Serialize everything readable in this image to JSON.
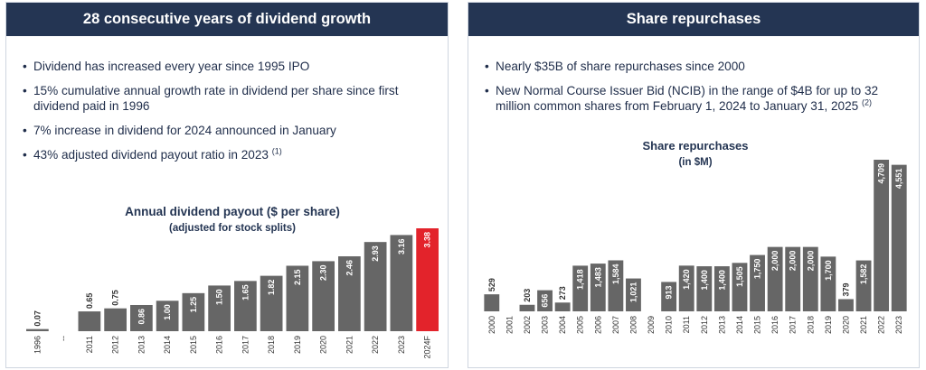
{
  "left_panel": {
    "title": "28 consecutive years of dividend growth",
    "bullets": [
      {
        "text": "Dividend has increased every year since 1995 IPO",
        "sup": ""
      },
      {
        "text": "15% cumulative annual growth rate in dividend per share since first dividend paid in 1996",
        "sup": ""
      },
      {
        "text": "7% increase in dividend for 2024 announced in January",
        "sup": ""
      },
      {
        "text": "43% adjusted dividend payout ratio in 2023",
        "sup": "(1)"
      }
    ]
  },
  "right_panel": {
    "title": "Share repurchases",
    "bullets": [
      {
        "text": "Nearly $35B of share repurchases since 2000",
        "sup": ""
      },
      {
        "text": "New Normal Course Issuer Bid (NCIB) in the range of $4B for up to 32 million common shares from February 1, 2024 to January 31, 2025",
        "sup": "(2)"
      }
    ]
  },
  "chart_data": [
    {
      "type": "bar",
      "title": "Annual dividend payout ($ per share)",
      "subtitle": "(adjusted for stock splits)",
      "categories": [
        "1996",
        "--",
        "2011",
        "2012",
        "2013",
        "2014",
        "2015",
        "2016",
        "2017",
        "2018",
        "2019",
        "2020",
        "2021",
        "2022",
        "2023",
        "2024F"
      ],
      "values": [
        0.07,
        null,
        0.65,
        0.75,
        0.86,
        1.0,
        1.25,
        1.5,
        1.65,
        1.82,
        2.15,
        2.3,
        2.46,
        2.93,
        3.16,
        3.38
      ],
      "labels": [
        "0.07",
        "",
        "0.65",
        "0.75",
        "0.86",
        "1.00",
        "1.25",
        "1.50",
        "1.65",
        "1.82",
        "2.15",
        "2.30",
        "2.46",
        "2.93",
        "3.16",
        "3.38"
      ],
      "ylim": [
        0,
        3.38
      ],
      "colors": {
        "bar": "#666666",
        "highlight": "#e3232b"
      },
      "highlight_index": 15
    },
    {
      "type": "bar",
      "title": "Share repurchases",
      "subtitle": "(in $M)",
      "categories": [
        "2000",
        "2001",
        "2002",
        "2003",
        "2004",
        "2005",
        "2006",
        "2007",
        "2008",
        "2009",
        "2010",
        "2011",
        "2012",
        "2013",
        "2014",
        "2015",
        "2016",
        "2017",
        "2018",
        "2019",
        "2020",
        "2021",
        "2022",
        "2023"
      ],
      "values": [
        529,
        0,
        203,
        656,
        273,
        1418,
        1483,
        1584,
        1021,
        0,
        913,
        1420,
        1400,
        1400,
        1505,
        1750,
        2000,
        2000,
        2000,
        1700,
        379,
        1582,
        4709,
        4551
      ],
      "labels": [
        "529",
        "",
        "203",
        "656",
        "273",
        "1,418",
        "1,483",
        "1,584",
        "1,021",
        "",
        "913",
        "1,420",
        "1,400",
        "1,400",
        "1,505",
        "1,750",
        "2,000",
        "2,000",
        "2,000",
        "1,700",
        "379",
        "1,582",
        "4,709",
        "4,551"
      ],
      "ylim": [
        0,
        4709
      ],
      "colors": {
        "bar": "#666666"
      }
    }
  ]
}
